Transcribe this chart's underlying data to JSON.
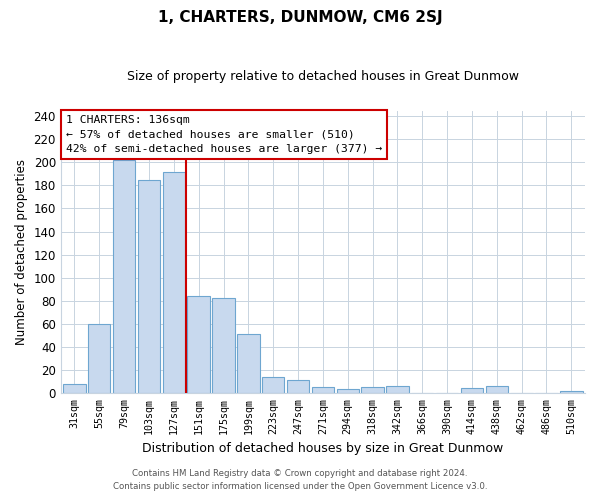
{
  "title": "1, CHARTERS, DUNMOW, CM6 2SJ",
  "subtitle": "Size of property relative to detached houses in Great Dunmow",
  "xlabel": "Distribution of detached houses by size in Great Dunmow",
  "ylabel": "Number of detached properties",
  "categories": [
    "31sqm",
    "55sqm",
    "79sqm",
    "103sqm",
    "127sqm",
    "151sqm",
    "175sqm",
    "199sqm",
    "223sqm",
    "247sqm",
    "271sqm",
    "294sqm",
    "318sqm",
    "342sqm",
    "366sqm",
    "390sqm",
    "414sqm",
    "438sqm",
    "462sqm",
    "486sqm",
    "510sqm"
  ],
  "values": [
    8,
    60,
    202,
    185,
    192,
    84,
    82,
    51,
    14,
    11,
    5,
    3,
    5,
    6,
    0,
    0,
    4,
    6,
    0,
    0,
    2
  ],
  "bar_color": "#c8d9ee",
  "bar_edge_color": "#6ea6d0",
  "vline_index": 5,
  "vline_color": "#cc0000",
  "ylim": [
    0,
    245
  ],
  "yticks": [
    0,
    20,
    40,
    60,
    80,
    100,
    120,
    140,
    160,
    180,
    200,
    220,
    240
  ],
  "annotation_title": "1 CHARTERS: 136sqm",
  "annotation_line1": "← 57% of detached houses are smaller (510)",
  "annotation_line2": "42% of semi-detached houses are larger (377) →",
  "annotation_box_color": "#ffffff",
  "annotation_box_edge": "#cc0000",
  "footer1": "Contains HM Land Registry data © Crown copyright and database right 2024.",
  "footer2": "Contains public sector information licensed under the Open Government Licence v3.0.",
  "background_color": "#ffffff",
  "grid_color": "#c8d4e0"
}
